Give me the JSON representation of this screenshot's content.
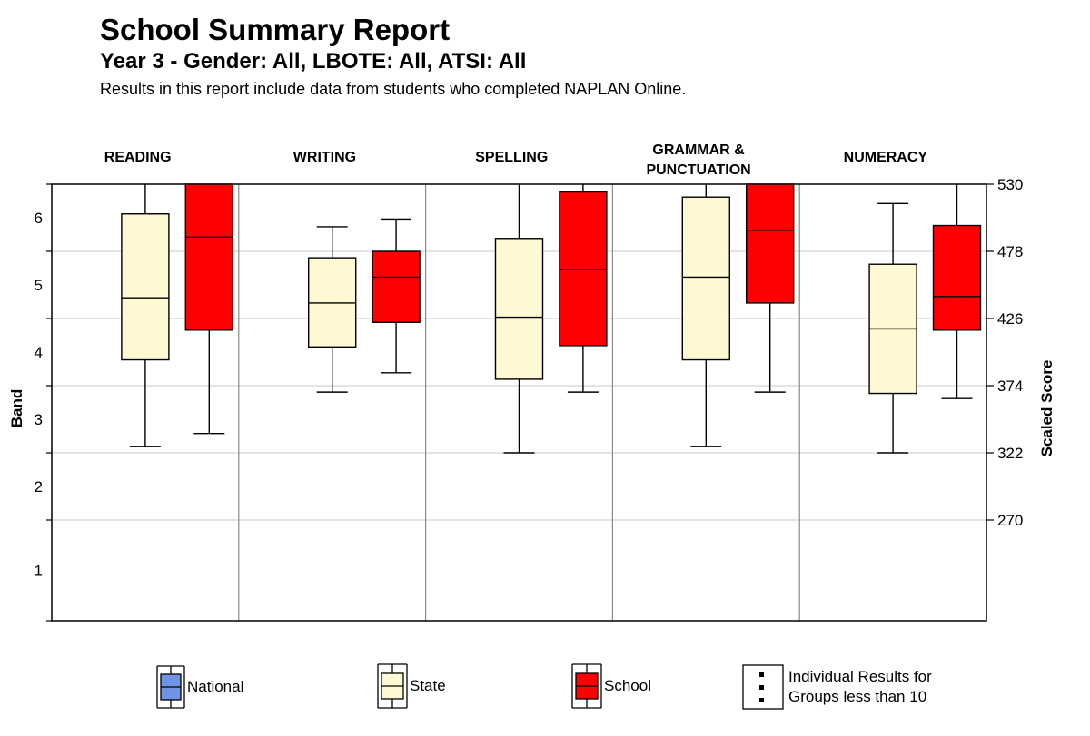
{
  "header": {
    "title": "School Summary Report",
    "subtitle": "Year 3 - Gender: All, LBOTE: All, ATSI: All",
    "note": "Results in this report include data from students who completed NAPLAN Online."
  },
  "chart_data": {
    "type": "box",
    "y_left_label": "Band",
    "y_right_label": "Scaled Score",
    "band_ticks": [
      "1",
      "2",
      "3",
      "4",
      "5",
      "6"
    ],
    "score_ticks": [
      270,
      322,
      374,
      426,
      478,
      530
    ],
    "score_range": [
      192,
      530
    ],
    "grid": true,
    "domains": [
      {
        "name": "READING",
        "state": {
          "min": 327,
          "q1": 394,
          "median": 442,
          "q3": 507,
          "max": 530
        },
        "school": {
          "min": 337,
          "q1": 417,
          "median": 489,
          "q3": 530,
          "max": 530
        }
      },
      {
        "name": "WRITING",
        "state": {
          "min": 369,
          "q1": 404,
          "median": 438,
          "q3": 473,
          "max": 497
        },
        "school": {
          "min": 384,
          "q1": 423,
          "median": 458,
          "q3": 478,
          "max": 503
        }
      },
      {
        "name": "SPELLING",
        "state": {
          "min": 322,
          "q1": 379,
          "median": 427,
          "q3": 488,
          "max": 530
        },
        "school": {
          "min": 369,
          "q1": 405,
          "median": 464,
          "q3": 524,
          "max": 530
        }
      },
      {
        "name": "GRAMMAR & PUNCTUATION",
        "label_lines": [
          "GRAMMAR &",
          "PUNCTUATION"
        ],
        "state": {
          "min": 327,
          "q1": 394,
          "median": 458,
          "q3": 520,
          "max": 530
        },
        "school": {
          "min": 369,
          "q1": 438,
          "median": 494,
          "q3": 530,
          "max": 530
        }
      },
      {
        "name": "NUMERACY",
        "state": {
          "min": 322,
          "q1": 368,
          "median": 418,
          "q3": 468,
          "max": 515
        },
        "school": {
          "min": 364,
          "q1": 417,
          "median": 443,
          "q3": 498,
          "max": 530
        }
      }
    ],
    "series_colors": {
      "national": "#6f94e6",
      "state": "#fef9d2",
      "school": "#ff0000"
    }
  },
  "legend": [
    {
      "key": "national",
      "label": "National",
      "icon": "box-legend-icon"
    },
    {
      "key": "state",
      "label": "State",
      "icon": "box-legend-icon"
    },
    {
      "key": "school",
      "label": "School",
      "icon": "box-legend-icon"
    },
    {
      "key": "individual",
      "label_lines": [
        "Individual Results for",
        "Groups less than 10"
      ],
      "icon": "dots-icon"
    }
  ]
}
